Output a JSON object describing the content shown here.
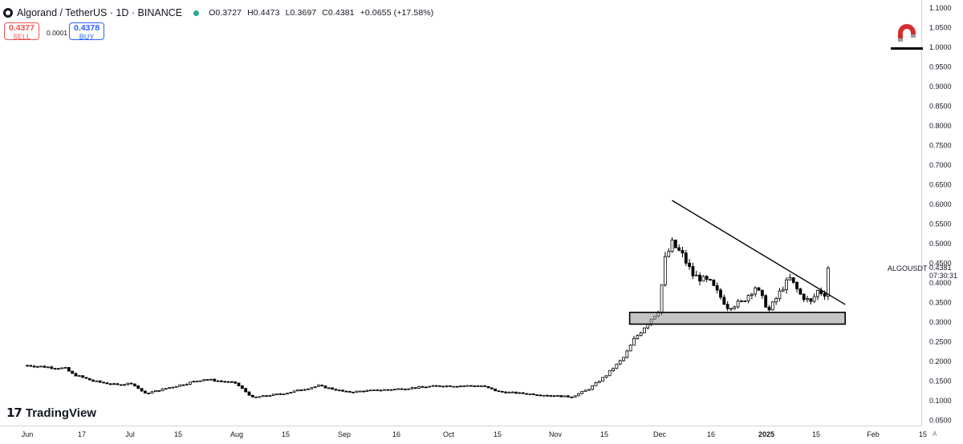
{
  "header": {
    "symbol": "Algorand / TetherUS · 1D · BINANCE",
    "open": "O0.3727",
    "high": "H0.4473",
    "low": "L0.3697",
    "close": "C0.4381",
    "change": "+0.0655 (+17.58%)",
    "live_color": "#26a69a"
  },
  "trade": {
    "sell_price": "0.4377",
    "sell_label": "SELL",
    "spread": "0.0001",
    "buy_price": "0.4378",
    "buy_label": "BUY",
    "sell_color": "#ef5350",
    "buy_color": "#2962ff"
  },
  "branding": {
    "name": "TradingView",
    "icon": "tradingview-logo-icon"
  },
  "tools": {
    "magnet_icon": "magnet-icon"
  },
  "price_label": {
    "symbol": "ALGOUSDT",
    "price": "0.4381",
    "countdown": "07:30:31"
  },
  "corner_label": "A",
  "chart_data": {
    "type": "candlestick",
    "title": "",
    "xlabel": "",
    "ylabel": "",
    "ylim": [
      0.05,
      1.11
    ],
    "grid": false,
    "x_ticks": [
      "Jun",
      "17",
      "Jul",
      "15",
      "Aug",
      "15",
      "Sep",
      "16",
      "Oct",
      "15",
      "Nov",
      "15",
      "Dec",
      "16",
      "2025",
      "15",
      "Feb",
      "15"
    ],
    "y_ticks": [
      "1.1000",
      "1.0500",
      "1.0000",
      "0.9500",
      "0.9000",
      "0.8500",
      "0.8000",
      "0.7500",
      "0.7000",
      "0.6500",
      "0.6000",
      "0.5500",
      "0.5000",
      "0.4500",
      "0.4000",
      "0.3500",
      "0.3000",
      "0.2500",
      "0.2000",
      "0.1500",
      "0.1000",
      "0.0500"
    ],
    "close_path": [
      [
        "2024-06-01",
        0.19
      ],
      [
        "2024-06-12",
        0.182
      ],
      [
        "2024-06-14",
        0.168
      ],
      [
        "2024-06-20",
        0.15
      ],
      [
        "2024-06-27",
        0.14
      ],
      [
        "2024-07-01",
        0.145
      ],
      [
        "2024-07-05",
        0.118
      ],
      [
        "2024-07-15",
        0.14
      ],
      [
        "2024-07-22",
        0.155
      ],
      [
        "2024-07-31",
        0.145
      ],
      [
        "2024-08-05",
        0.108
      ],
      [
        "2024-08-15",
        0.12
      ],
      [
        "2024-08-24",
        0.138
      ],
      [
        "2024-09-01",
        0.122
      ],
      [
        "2024-09-16",
        0.13
      ],
      [
        "2024-09-28",
        0.138
      ],
      [
        "2024-10-10",
        0.138
      ],
      [
        "2024-10-15",
        0.123
      ],
      [
        "2024-11-01",
        0.112
      ],
      [
        "2024-11-05",
        0.11
      ],
      [
        "2024-11-10",
        0.13
      ],
      [
        "2024-11-15",
        0.165
      ],
      [
        "2024-11-20",
        0.21
      ],
      [
        "2024-11-23",
        0.255
      ],
      [
        "2024-11-27",
        0.3
      ],
      [
        "2024-11-30",
        0.33
      ],
      [
        "2024-12-02",
        0.46
      ],
      [
        "2024-12-04",
        0.5
      ],
      [
        "2024-12-07",
        0.47
      ],
      [
        "2024-12-10",
        0.42
      ],
      [
        "2024-12-15",
        0.4
      ],
      [
        "2024-12-20",
        0.34
      ],
      [
        "2024-12-24",
        0.35
      ],
      [
        "2024-12-28",
        0.39
      ],
      [
        "2025-01-01",
        0.33
      ],
      [
        "2025-01-05",
        0.39
      ],
      [
        "2025-01-07",
        0.41
      ],
      [
        "2025-01-10",
        0.37
      ],
      [
        "2025-01-13",
        0.35
      ],
      [
        "2025-01-15",
        0.38
      ],
      [
        "2025-01-17",
        0.3727
      ],
      [
        "2025-01-18",
        0.4381
      ]
    ],
    "annotations": {
      "descending_trendline": [
        [
          "2024-12-04",
          0.61
        ],
        [
          "2025-01-22",
          0.345
        ]
      ],
      "support_zone": {
        "from": "2024-11-25",
        "to": "2025-01-22",
        "low": 0.295,
        "high": 0.325
      }
    }
  }
}
